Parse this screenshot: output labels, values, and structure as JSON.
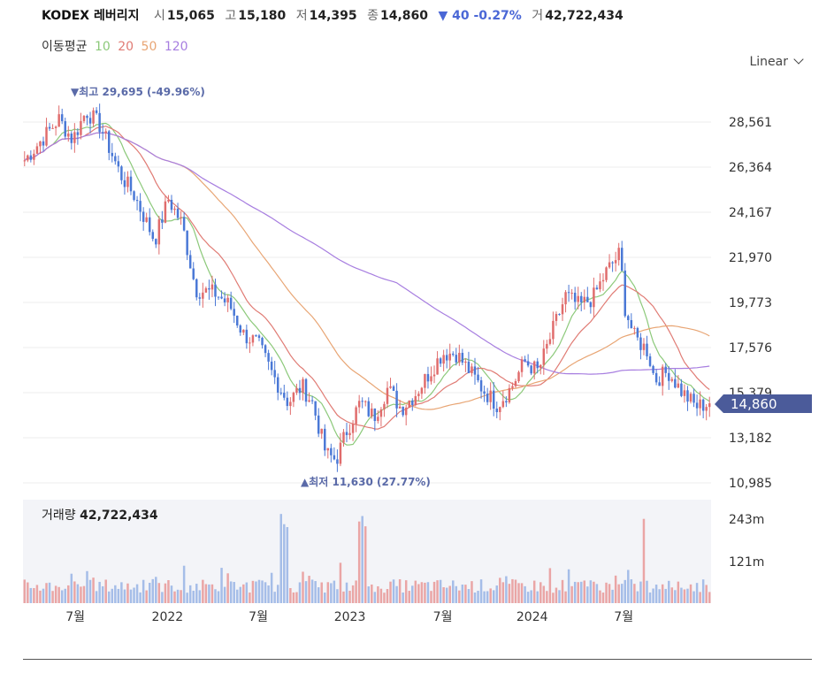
{
  "header": {
    "ticker": "KODEX 레버리지",
    "open_label": "시",
    "open": "15,065",
    "high_label": "고",
    "high": "15,180",
    "low_label": "저",
    "low": "14,395",
    "close_label": "종",
    "close": "14,860",
    "change": "▼ 40 -0.27%",
    "volume_label": "거",
    "volume": "42,722,434"
  },
  "ma_legend": {
    "title": "이동평균",
    "items": [
      {
        "label": "10",
        "color": "#8cc97a"
      },
      {
        "label": "20",
        "color": "#e07b74"
      },
      {
        "label": "50",
        "color": "#e8a574"
      },
      {
        "label": "120",
        "color": "#a77ee0"
      }
    ]
  },
  "scale_select": {
    "value": "Linear"
  },
  "annotations": {
    "high": "▼최고 29,695 (-49.96%)",
    "low": "▲최저 11,630 (27.77%)"
  },
  "current_price": "14,860",
  "volume_panel": {
    "label": "거래량",
    "value": "42,722,434"
  },
  "colors": {
    "up": "#e06c6c",
    "down": "#4a78d6",
    "grid": "#e6e6e6",
    "price_tag": "#4b5b9a"
  },
  "chart_data": {
    "type": "candlestick",
    "title": "KODEX 레버리지",
    "y_ticks": [
      "28,561",
      "26,364",
      "24,167",
      "21,970",
      "19,773",
      "17,576",
      "15,379",
      "13,182",
      "10,985"
    ],
    "y_tick_values": [
      28561,
      26364,
      24167,
      21970,
      19773,
      17576,
      15379,
      13182,
      10985
    ],
    "ylim": [
      10985,
      30000
    ],
    "x_ticks": [
      "7월",
      "2022",
      "7월",
      "2023",
      "7월",
      "2024",
      "7월"
    ],
    "x_tick_positions": [
      0.076,
      0.21,
      0.342,
      0.475,
      0.61,
      0.74,
      0.873
    ],
    "volume_ticks": [
      "243m",
      "121m"
    ],
    "volume_tick_values": [
      243,
      121
    ],
    "series": [
      {
        "name": "price",
        "x": [
          0,
          0.03,
          0.05,
          0.07,
          0.09,
          0.11,
          0.14,
          0.16,
          0.19,
          0.21,
          0.23,
          0.25,
          0.28,
          0.3,
          0.32,
          0.34,
          0.36,
          0.385,
          0.405,
          0.42,
          0.44,
          0.455,
          0.47,
          0.49,
          0.51,
          0.53,
          0.55,
          0.57,
          0.59,
          0.61,
          0.63,
          0.65,
          0.67,
          0.69,
          0.71,
          0.73,
          0.75,
          0.77,
          0.79,
          0.81,
          0.83,
          0.85,
          0.87,
          0.875,
          0.89,
          0.91,
          0.92,
          0.94,
          0.96,
          0.98,
          1.0
        ],
        "values": [
          26700,
          27900,
          28700,
          27700,
          29100,
          28400,
          26000,
          25000,
          22800,
          24800,
          23600,
          20400,
          20200,
          19600,
          18200,
          17800,
          16400,
          14900,
          15700,
          14900,
          12400,
          12100,
          13500,
          14900,
          14200,
          15600,
          14600,
          15300,
          16300,
          17300,
          17300,
          16400,
          15500,
          14800,
          15600,
          16900,
          16400,
          18300,
          20100,
          19600,
          20000,
          21300,
          22200,
          19700,
          18100,
          17400,
          16000,
          16400,
          15400,
          14700,
          14860
        ]
      },
      {
        "name": "MA10",
        "values": []
      },
      {
        "name": "MA20",
        "values": []
      },
      {
        "name": "MA50",
        "values": []
      },
      {
        "name": "MA120",
        "values": []
      }
    ],
    "high_point": {
      "value": 29695
    },
    "low_point": {
      "value": 11630
    }
  }
}
